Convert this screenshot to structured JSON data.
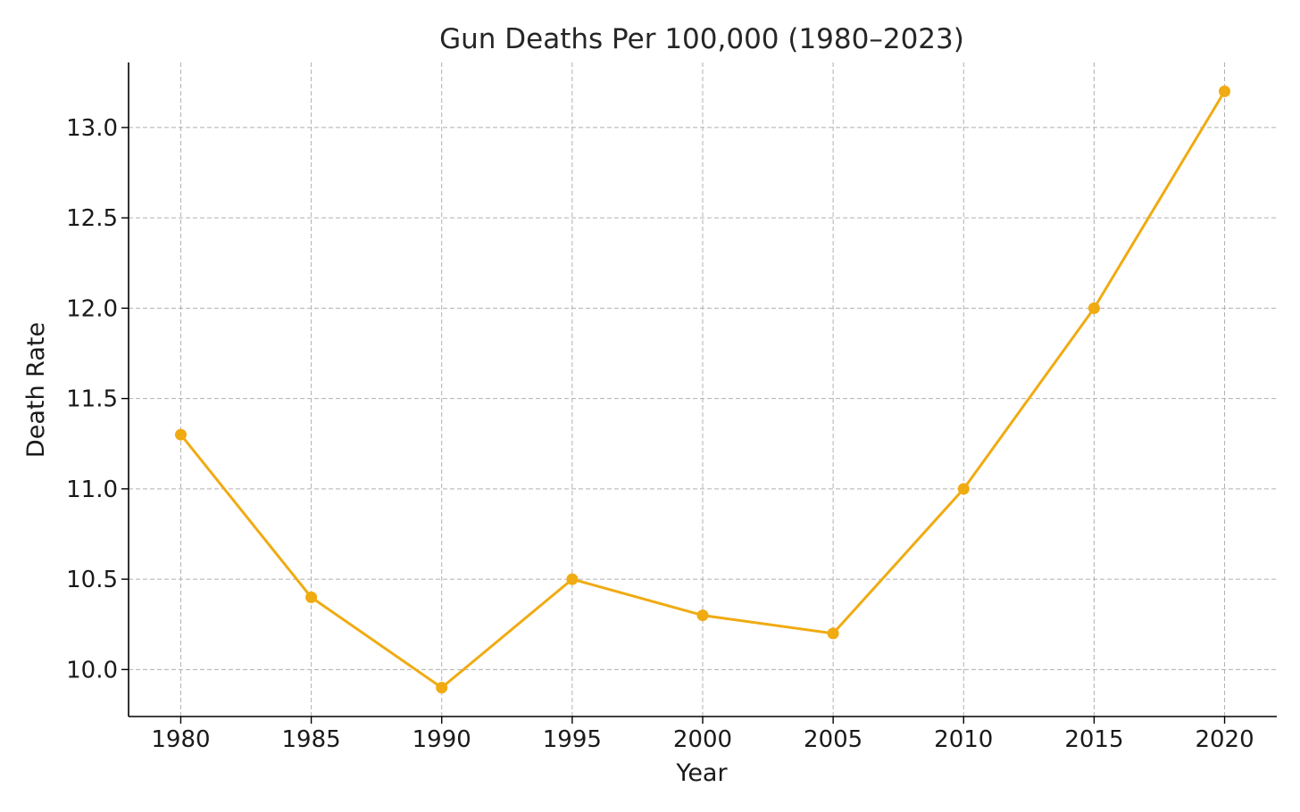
{
  "chart_data": {
    "type": "line",
    "title": "Gun Deaths Per 100,000 (1980–2023)",
    "xlabel": "Year",
    "ylabel": "Death Rate",
    "x": [
      1980,
      1985,
      1990,
      1995,
      2000,
      2005,
      2010,
      2015,
      2020
    ],
    "x_ticks": [
      "1980",
      "1985",
      "1990",
      "1995",
      "2000",
      "2005",
      "2010",
      "2015",
      "2020"
    ],
    "y_ticks": [
      "10.0",
      "10.5",
      "11.0",
      "11.5",
      "12.0",
      "12.5",
      "13.0"
    ],
    "series": [
      {
        "values": [
          11.3,
          10.4,
          9.9,
          10.5,
          10.3,
          10.2,
          11.0,
          12.0,
          13.2
        ],
        "color": "#F0AB12",
        "marker": "circle"
      }
    ],
    "xlim": [
      1978,
      2022
    ],
    "ylim": [
      9.74,
      13.36
    ],
    "grid": true,
    "legend": "none"
  }
}
